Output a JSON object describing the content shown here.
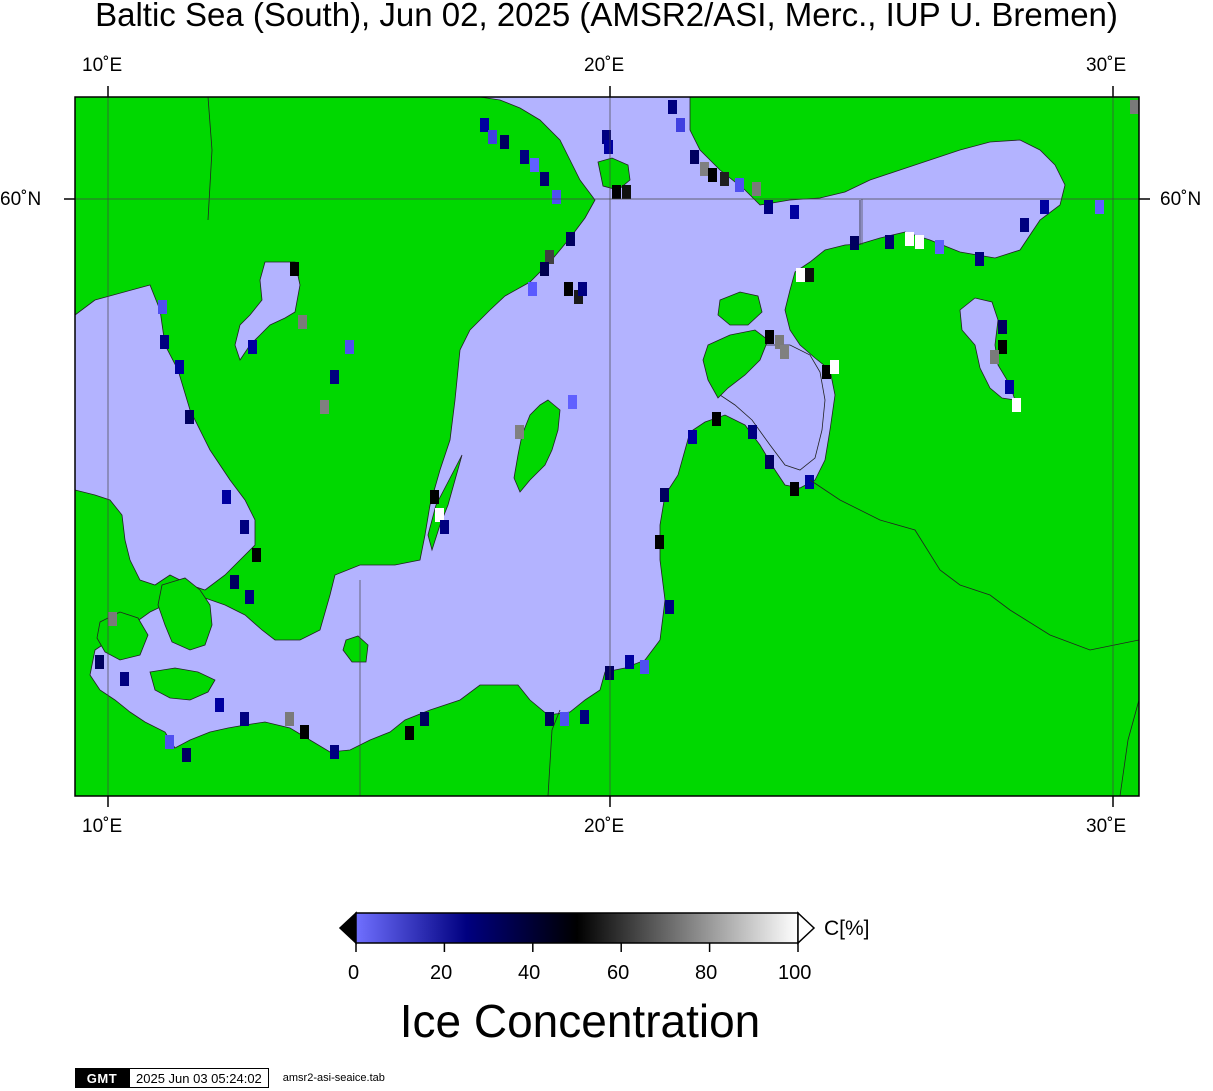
{
  "title": "Baltic Sea (South), Jun 02, 2025 (AMSR2/ASI, Merc., IUP U. Bremen)",
  "axes": {
    "top_lon_labels": [
      "10˚E",
      "20˚E",
      "30˚E"
    ],
    "bottom_lon_labels": [
      "10˚E",
      "20˚E",
      "30˚E"
    ],
    "left_lat_labels": [
      "60˚N"
    ],
    "right_lat_labels": [
      "60˚N"
    ]
  },
  "colors": {
    "land": "#00d800",
    "water_low_ice": "#b3b3ff",
    "coast": "#222222",
    "graticule": "#444444",
    "no_data_gray": "#7a7a7a"
  },
  "colorbar": {
    "unit_label": "C[%]",
    "ticks": [
      "0",
      "20",
      "40",
      "60",
      "80",
      "100"
    ],
    "label": "Ice Concentration",
    "range": [
      0,
      100
    ],
    "stops": [
      {
        "value": 0,
        "color": "#7070ff"
      },
      {
        "value": 25,
        "color": "#000080"
      },
      {
        "value": 50,
        "color": "#000000"
      },
      {
        "value": 100,
        "color": "#ffffff"
      }
    ]
  },
  "footer": {
    "logo": "GMT",
    "timestamp": "2025 Jun 03 05:24:02",
    "command": "amsr2-asi-seaice.tab"
  }
}
